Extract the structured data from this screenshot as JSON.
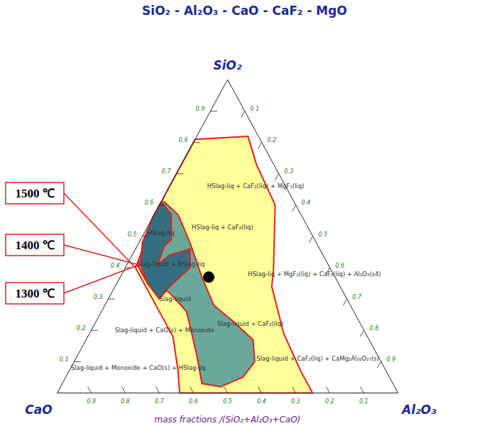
{
  "chart_data": {
    "type": "ternary",
    "title": "SiO₂ - Al₂O₃ - CaO - CaF₂ - MgO",
    "axis_label": "mass fractions /(SiO₂+Al₂O₃+CaO)",
    "components": [
      "SiO₂",
      "CaO",
      "Al₂O₃"
    ],
    "ticks": [
      0.1,
      0.2,
      0.3,
      0.4,
      0.5,
      0.6,
      0.7,
      0.8,
      0.9
    ],
    "series": [
      {
        "name": "1500 ℃",
        "color": "#ffff99",
        "vertices": [
          [
            0.81,
            0.19,
            0.0
          ],
          [
            0.82,
            0.03,
            0.15
          ],
          [
            0.73,
            0.05,
            0.22
          ],
          [
            0.6,
            0.06,
            0.34
          ],
          [
            0.39,
            0.17,
            0.44
          ],
          [
            0.34,
            0.2,
            0.46
          ],
          [
            0.19,
            0.24,
            0.57
          ],
          [
            0.07,
            0.25,
            0.68
          ],
          [
            0.0,
            0.25,
            0.75
          ],
          [
            0.0,
            0.64,
            0.36
          ],
          [
            0.07,
            0.61,
            0.32
          ],
          [
            0.18,
            0.57,
            0.25
          ],
          [
            0.32,
            0.57,
            0.11
          ],
          [
            0.4,
            0.57,
            0.03
          ],
          [
            0.63,
            0.37,
            0.0
          ]
        ]
      },
      {
        "name": "1400 ℃",
        "color": "#6aa99a",
        "vertices": [
          [
            0.61,
            0.38,
            0.01
          ],
          [
            0.57,
            0.36,
            0.07
          ],
          [
            0.48,
            0.37,
            0.15
          ],
          [
            0.37,
            0.39,
            0.24
          ],
          [
            0.28,
            0.4,
            0.32
          ],
          [
            0.23,
            0.37,
            0.4
          ],
          [
            0.17,
            0.34,
            0.49
          ],
          [
            0.1,
            0.37,
            0.53
          ],
          [
            0.05,
            0.43,
            0.52
          ],
          [
            0.02,
            0.51,
            0.47
          ],
          [
            0.03,
            0.56,
            0.41
          ],
          [
            0.12,
            0.53,
            0.35
          ],
          [
            0.26,
            0.49,
            0.25
          ],
          [
            0.32,
            0.51,
            0.17
          ],
          [
            0.36,
            0.56,
            0.08
          ],
          [
            0.41,
            0.56,
            0.03
          ],
          [
            0.51,
            0.48,
            0.01
          ],
          [
            0.6,
            0.4,
            0.0
          ]
        ]
      },
      {
        "name": "1300 ℃",
        "color": "#336f80",
        "vertices": [
          [
            0.61,
            0.39,
            0.0
          ],
          [
            0.57,
            0.38,
            0.05
          ],
          [
            0.49,
            0.42,
            0.09
          ],
          [
            0.47,
            0.45,
            0.08
          ],
          [
            0.41,
            0.5,
            0.09
          ],
          [
            0.44,
            0.45,
            0.11
          ],
          [
            0.46,
            0.38,
            0.16
          ],
          [
            0.4,
            0.41,
            0.19
          ],
          [
            0.34,
            0.5,
            0.16
          ],
          [
            0.3,
            0.55,
            0.15
          ],
          [
            0.35,
            0.56,
            0.09
          ],
          [
            0.41,
            0.55,
            0.04
          ],
          [
            0.48,
            0.51,
            0.01
          ],
          [
            0.56,
            0.44,
            0.0
          ]
        ]
      }
    ],
    "points": [
      [
        0.37,
        0.37,
        0.26
      ]
    ],
    "annotations": [
      {
        "text": "HSlag-liq + CaF₂(liq) + MgF₂(liq)",
        "at": [
          0.66,
          0.23,
          0.11
        ]
      },
      {
        "text": "HSlag-liq + CaF₂(liq)",
        "at": [
          0.53,
          0.34,
          0.13
        ]
      },
      {
        "text": "HSlag-liq + MgF₂(liq) + CaF₂(liq) + Al₂O₃(s4)",
        "at": [
          0.38,
          0.25,
          0.37
        ]
      },
      {
        "text": "Slag-liquid + CaF₂(liq)",
        "at": [
          0.22,
          0.42,
          0.36
        ]
      },
      {
        "text": "Slag-liquid + CaF₂(liq) + CaMg₂Al₁₆O₂₇(s)",
        "at": [
          0.11,
          0.36,
          0.53
        ]
      },
      {
        "text": "Slag-liquid + CaO(s) + Monoxide",
        "at": [
          0.2,
          0.73,
          0.07
        ]
      },
      {
        "text": "Slag-liquid + Monoxide + CaO(s) + HSlag-liq",
        "at": [
          0.08,
          0.92,
          0.0
        ]
      },
      {
        "text": "HSlag-liq",
        "at": [
          0.51,
          0.48,
          0.01
        ]
      },
      {
        "text": "Slag-liquid + HSlag-liq",
        "at": [
          0.41,
          0.56,
          0.03
        ]
      },
      {
        "text": "Slag-liquid",
        "at": [
          0.3,
          0.55,
          0.15
        ]
      }
    ]
  }
}
